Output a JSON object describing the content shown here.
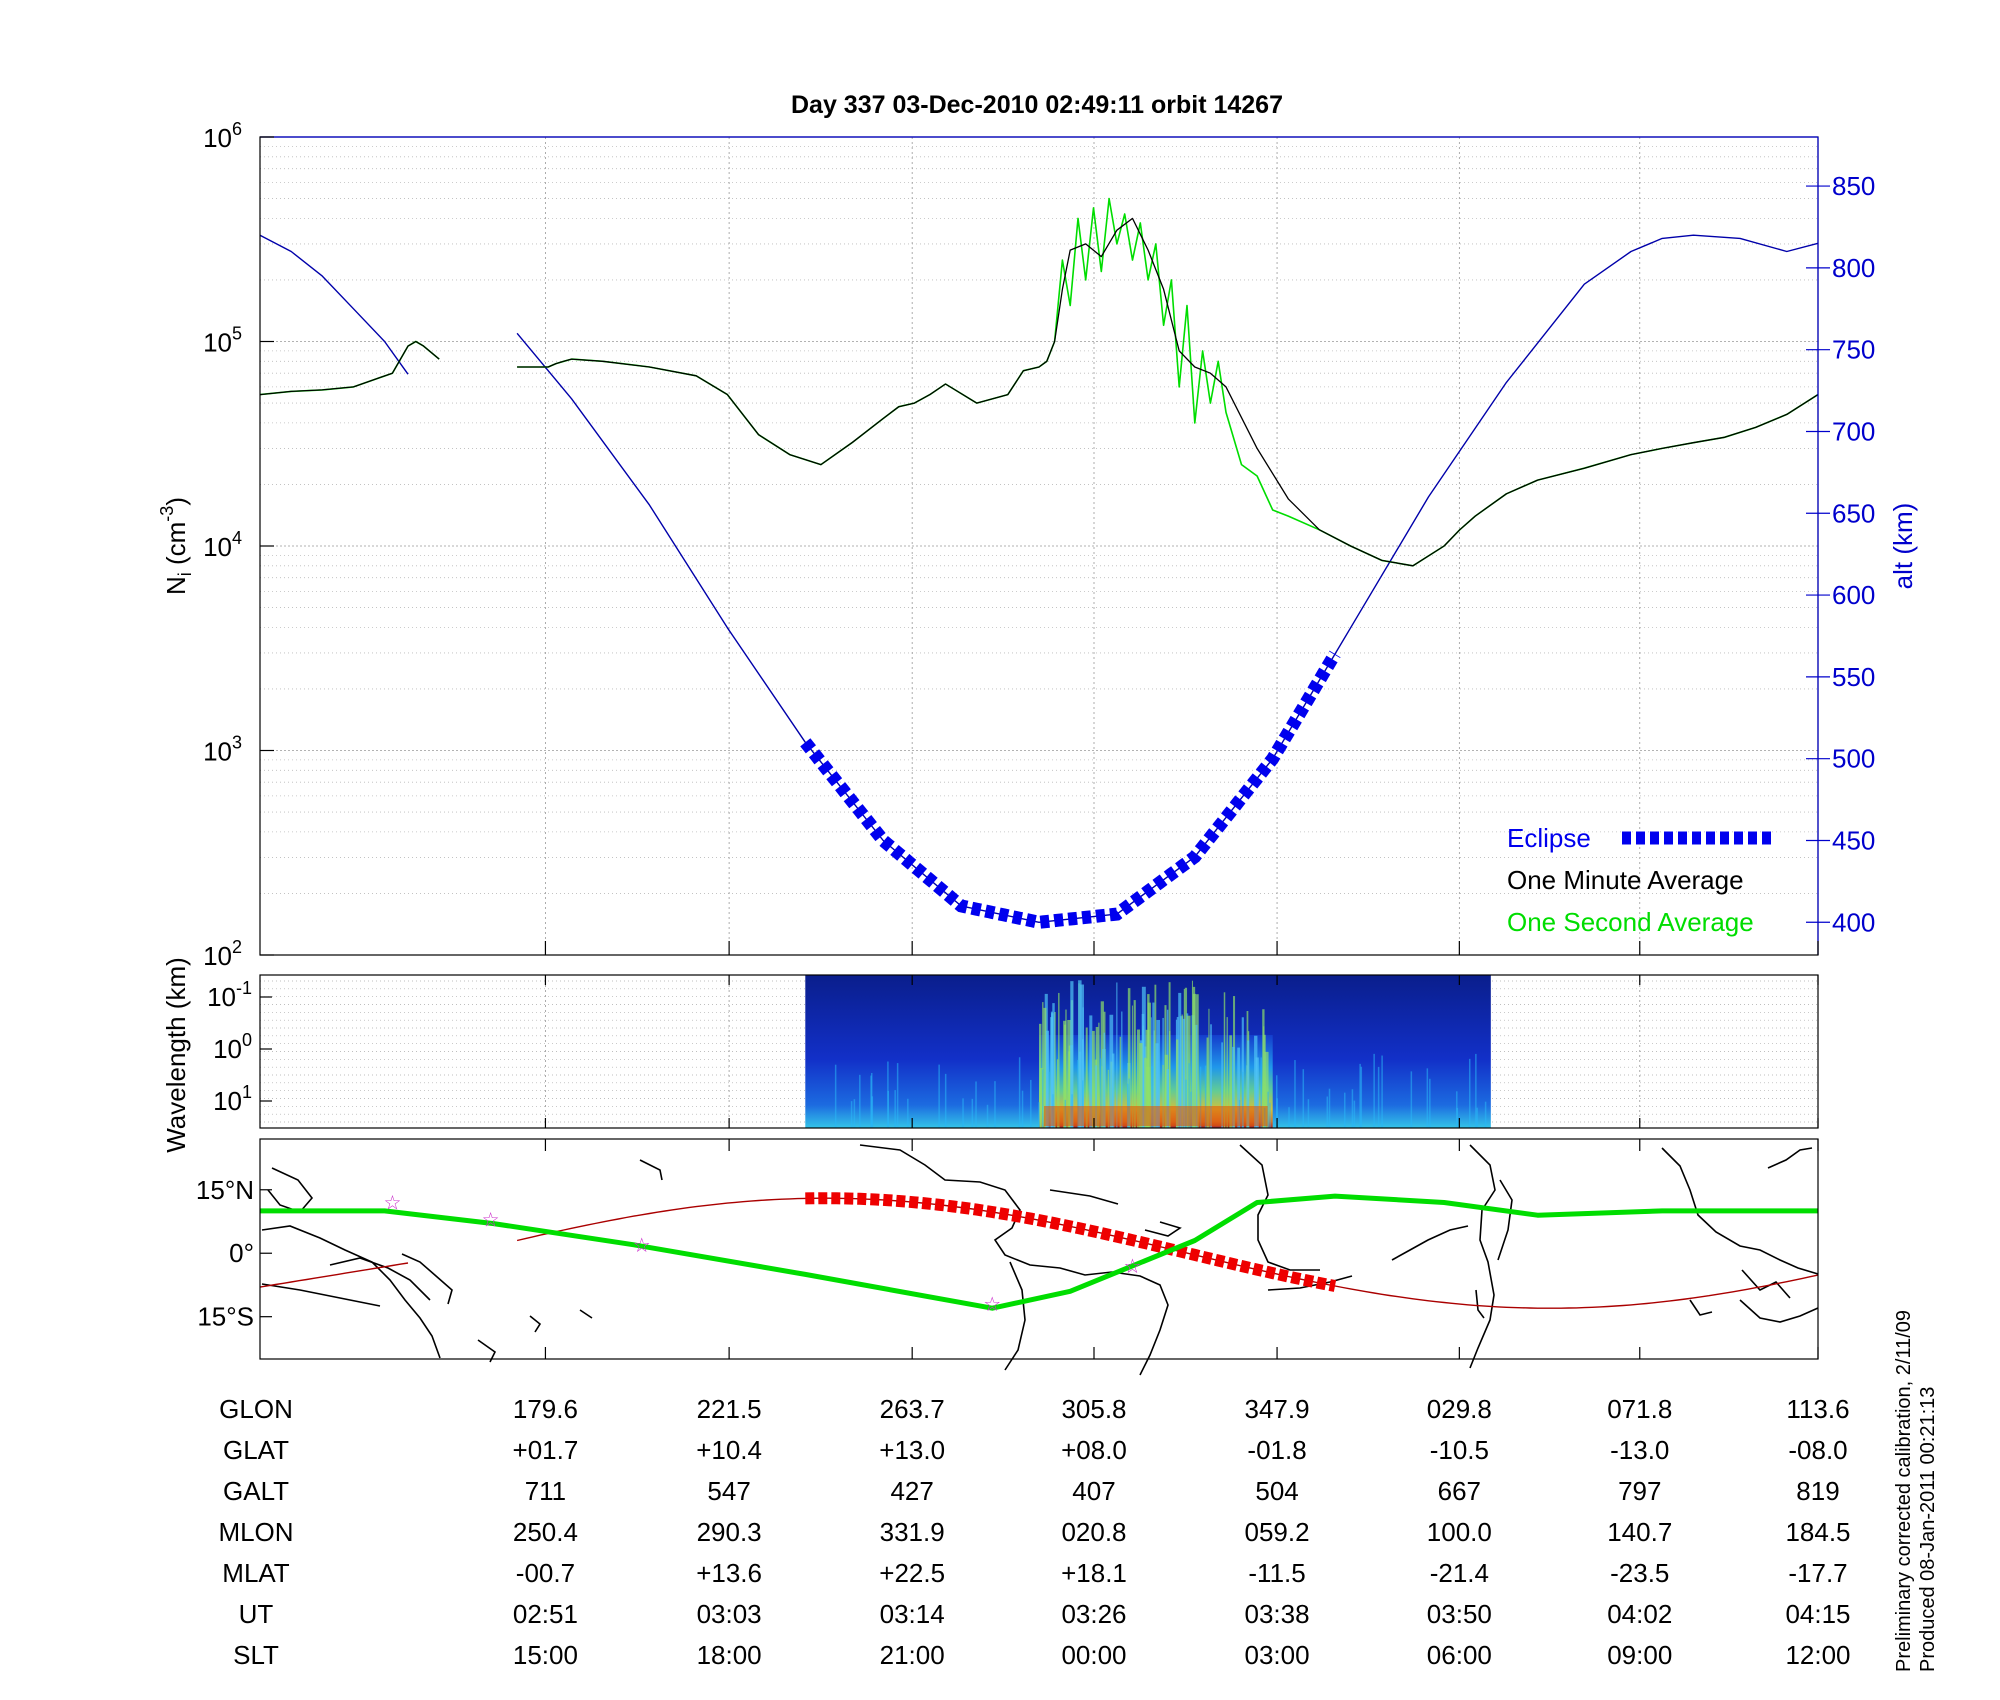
{
  "title": "Day 337  03-Dec-2010 02:49:11   orbit 14267",
  "footnote": {
    "line1": "Preliminary corrected calibration, 2/11/09",
    "line2": "Produced 08-Jan-2011 00:21:13"
  },
  "colors": {
    "one_minute": "#000000",
    "one_second": "#00dd00",
    "altitude": "#0000aa",
    "eclipse": "#0000ee",
    "ground_track": "#aa0000",
    "ground_eclipse": "#ee0000",
    "mag_equator": "#00dd00",
    "stars": "#cc33cc"
  },
  "chart_data": [
    {
      "type": "line",
      "panel": "density",
      "ylabel": "N_i (cm^-3)",
      "ylabel_base": "N",
      "ylabel_sub": "i",
      "ylabel_rest": " (cm",
      "ylabel_sup": "-3",
      "ylabel_close": ")",
      "yscale": "log",
      "ylim": [
        100,
        1000000
      ],
      "yticks": [
        {
          "base": "10",
          "exp": "2",
          "v": 100
        },
        {
          "base": "10",
          "exp": "3",
          "v": 1000
        },
        {
          "base": "10",
          "exp": "4",
          "v": 10000
        },
        {
          "base": "10",
          "exp": "5",
          "v": 100000
        },
        {
          "base": "10",
          "exp": "6",
          "v": 1000000
        }
      ],
      "y2label": "alt (km)",
      "y2lim": [
        380,
        880
      ],
      "y2ticks": [
        "400",
        "450",
        "500",
        "550",
        "600",
        "650",
        "700",
        "750",
        "800",
        "850"
      ],
      "xlim": [
        0,
        1
      ],
      "grid": true,
      "legend_position": "bottom-right",
      "legend": [
        {
          "label": "Eclipse",
          "color": "#0000ee"
        },
        {
          "label": "One Minute Average",
          "color": "#000000"
        },
        {
          "label": "One Second Average",
          "color": "#00dd00"
        }
      ],
      "one_minute_average": {
        "x": [
          0.0,
          0.02,
          0.04,
          0.06,
          0.085,
          0.095,
          0.1,
          0.105,
          0.115,
          0.165,
          0.185,
          0.19,
          0.195,
          0.2,
          0.22,
          0.25,
          0.28,
          0.3,
          0.32,
          0.34,
          0.36,
          0.38,
          0.4,
          0.41,
          0.42,
          0.43,
          0.44,
          0.46,
          0.48,
          0.49,
          0.5,
          0.505,
          0.51,
          0.515,
          0.52,
          0.53,
          0.54,
          0.55,
          0.56,
          0.57,
          0.58,
          0.59,
          0.6,
          0.61,
          0.62,
          0.64,
          0.66,
          0.68,
          0.7,
          0.72,
          0.74,
          0.76,
          0.77,
          0.78,
          0.8,
          0.82,
          0.85,
          0.88,
          0.9,
          0.92,
          0.94,
          0.96,
          0.98,
          1.0
        ],
        "y": [
          55000,
          57000,
          58000,
          60000,
          70000,
          95000,
          100000,
          95000,
          82000,
          75000,
          75000,
          78000,
          80000,
          82000,
          80000,
          75000,
          68000,
          55000,
          35000,
          28000,
          25000,
          32000,
          42000,
          48000,
          50000,
          55000,
          62000,
          50000,
          55000,
          72000,
          75000,
          80000,
          100000,
          180000,
          280000,
          300000,
          260000,
          350000,
          400000,
          280000,
          180000,
          90000,
          75000,
          70000,
          60000,
          30000,
          17000,
          12000,
          10000,
          8500,
          8000,
          10000,
          12000,
          14000,
          18000,
          21000,
          24000,
          28000,
          30000,
          32000,
          34000,
          38000,
          44000,
          55000
        ],
        "gap_after_x": 0.115
      },
      "one_second_average": {
        "x": [
          0.0,
          0.02,
          0.04,
          0.06,
          0.085,
          0.095,
          0.1,
          0.105,
          0.115,
          0.165,
          0.185,
          0.19,
          0.195,
          0.2,
          0.22,
          0.25,
          0.28,
          0.3,
          0.32,
          0.34,
          0.36,
          0.38,
          0.4,
          0.41,
          0.42,
          0.43,
          0.44,
          0.46,
          0.48,
          0.49,
          0.5,
          0.505,
          0.51,
          0.515,
          0.52,
          0.525,
          0.53,
          0.535,
          0.54,
          0.545,
          0.55,
          0.555,
          0.56,
          0.565,
          0.57,
          0.575,
          0.58,
          0.585,
          0.59,
          0.595,
          0.6,
          0.605,
          0.61,
          0.615,
          0.62,
          0.63,
          0.64,
          0.65,
          0.66,
          0.68,
          0.7,
          0.72,
          0.74,
          0.76,
          0.77,
          0.78,
          0.8,
          0.82,
          0.85,
          0.88,
          0.9,
          0.92,
          0.94,
          0.96,
          0.98,
          1.0
        ],
        "y": [
          55000,
          57000,
          58000,
          60000,
          70000,
          95000,
          100000,
          95000,
          82000,
          75000,
          75000,
          78000,
          80000,
          82000,
          80000,
          75000,
          68000,
          55000,
          35000,
          28000,
          25000,
          32000,
          42000,
          48000,
          50000,
          55000,
          62000,
          50000,
          55000,
          72000,
          75000,
          80000,
          100000,
          250000,
          150000,
          400000,
          200000,
          450000,
          220000,
          500000,
          300000,
          420000,
          250000,
          380000,
          200000,
          300000,
          120000,
          200000,
          60000,
          150000,
          40000,
          90000,
          50000,
          80000,
          45000,
          25000,
          22000,
          15000,
          14000,
          12000,
          10000,
          8500,
          8000,
          10000,
          12000,
          14000,
          18000,
          21000,
          24000,
          28000,
          30000,
          32000,
          34000,
          38000,
          44000,
          55000
        ],
        "gap_after_x": 0.115
      },
      "altitude_km": {
        "x": [
          0.0,
          0.02,
          0.04,
          0.06,
          0.08,
          0.095,
          0.165,
          0.2,
          0.25,
          0.3,
          0.35,
          0.4,
          0.45,
          0.5,
          0.55,
          0.6,
          0.65,
          0.7,
          0.75,
          0.8,
          0.85,
          0.88,
          0.9,
          0.92,
          0.95,
          0.98,
          1.0
        ],
        "y": [
          820,
          810,
          795,
          775,
          755,
          735,
          760,
          720,
          655,
          580,
          510,
          450,
          410,
          400,
          405,
          440,
          500,
          580,
          660,
          730,
          790,
          810,
          818,
          820,
          818,
          810,
          815
        ],
        "gap_after_x": 0.095
      },
      "eclipse_interval": [
        0.35,
        0.69
      ]
    },
    {
      "type": "heatmap",
      "panel": "spectrogram",
      "ylabel": "Wavelength (km)",
      "yticks": [
        {
          "base": "10",
          "exp": "-1"
        },
        {
          "base": "10",
          "exp": "0"
        },
        {
          "base": "10",
          "exp": "1"
        }
      ],
      "x_extent": [
        0.35,
        0.79
      ],
      "high_power_interval": [
        0.5,
        0.65
      ],
      "grid": true
    },
    {
      "type": "map",
      "panel": "ground_track",
      "yticks": [
        "15°N",
        "0°",
        "15°S"
      ],
      "ylim": [
        -25,
        27
      ],
      "stars_x_lat": [
        [
          0.085,
          12
        ],
        [
          0.148,
          8
        ],
        [
          0.245,
          2
        ],
        [
          0.47,
          -12
        ],
        [
          0.56,
          -3
        ]
      ]
    },
    {
      "type": "table",
      "panel": "orbit_parameters",
      "rows": [
        {
          "label": "GLON",
          "values": [
            "179.6",
            "221.5",
            "263.7",
            "305.8",
            "347.9",
            "029.8",
            "071.8",
            "113.6"
          ]
        },
        {
          "label": "GLAT",
          "values": [
            "+01.7",
            "+10.4",
            "+13.0",
            "+08.0",
            "-01.8",
            "-10.5",
            "-13.0",
            "-08.0"
          ]
        },
        {
          "label": "GALT",
          "values": [
            "711",
            "547",
            "427",
            "407",
            "504",
            "667",
            "797",
            "819"
          ]
        },
        {
          "label": "MLON",
          "values": [
            "250.4",
            "290.3",
            "331.9",
            "020.8",
            "059.2",
            "100.0",
            "140.7",
            "184.5"
          ]
        },
        {
          "label": "MLAT",
          "values": [
            "-00.7",
            "+13.6",
            "+22.5",
            "+18.1",
            "-11.5",
            "-21.4",
            "-23.5",
            "-17.7"
          ]
        },
        {
          "label": "UT",
          "values": [
            "02:51",
            "03:03",
            "03:14",
            "03:26",
            "03:38",
            "03:50",
            "04:02",
            "04:15"
          ]
        },
        {
          "label": "SLT",
          "values": [
            "15:00",
            "18:00",
            "21:00",
            "00:00",
            "03:00",
            "06:00",
            "09:00",
            "12:00"
          ]
        }
      ]
    }
  ]
}
